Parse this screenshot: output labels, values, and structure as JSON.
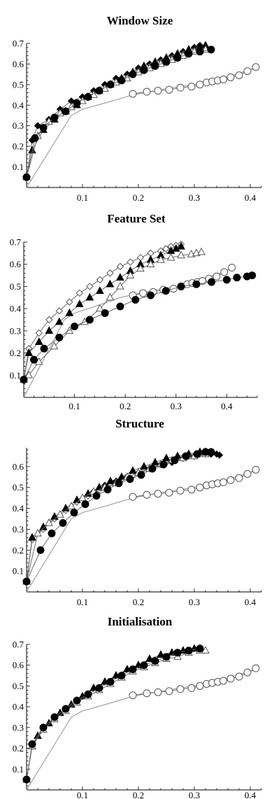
{
  "chart_data": [
    {
      "type": "line",
      "title": "Window Size",
      "xlim": [
        0,
        0.42
      ],
      "ylim": [
        0,
        0.7
      ],
      "xticks": [
        0.1,
        0.2,
        0.3,
        0.4
      ],
      "yticks": [
        0.1,
        0.2,
        0.3,
        0.4,
        0.5,
        0.6,
        0.7
      ],
      "grid": false,
      "series": [
        {
          "marker": "none",
          "color": "#999999",
          "x": [
            0.0,
            0.08,
            0.1,
            0.14,
            0.19,
            0.25,
            0.3,
            0.35,
            0.41
          ],
          "y": [
            0.0,
            0.35,
            0.38,
            0.41,
            0.45,
            0.48,
            0.5,
            0.53,
            0.58
          ]
        },
        {
          "marker": "circle-open",
          "color": "#555555",
          "x": [
            0.19,
            0.215,
            0.235,
            0.255,
            0.275,
            0.295,
            0.31,
            0.322,
            0.332,
            0.342,
            0.352,
            0.365,
            0.38,
            0.395,
            0.41
          ],
          "y": [
            0.455,
            0.465,
            0.47,
            0.475,
            0.485,
            0.49,
            0.5,
            0.51,
            0.515,
            0.52,
            0.525,
            0.535,
            0.545,
            0.565,
            0.585
          ]
        },
        {
          "marker": "diamond-filled",
          "color": "#555555",
          "x": [
            0.0,
            0.01,
            0.02,
            0.04,
            0.06,
            0.08,
            0.1,
            0.12,
            0.14,
            0.16,
            0.18,
            0.2,
            0.22,
            0.24,
            0.26,
            0.28,
            0.3,
            0.31
          ],
          "y": [
            0.05,
            0.23,
            0.3,
            0.33,
            0.38,
            0.42,
            0.44,
            0.47,
            0.5,
            0.53,
            0.55,
            0.58,
            0.6,
            0.62,
            0.64,
            0.66,
            0.68,
            0.69
          ]
        },
        {
          "marker": "triangle-filled",
          "color": "#555555",
          "x": [
            0.0,
            0.01,
            0.03,
            0.05,
            0.07,
            0.09,
            0.11,
            0.13,
            0.15,
            0.17,
            0.19,
            0.21,
            0.23,
            0.25,
            0.27,
            0.29,
            0.31,
            0.32
          ],
          "y": [
            0.05,
            0.18,
            0.28,
            0.33,
            0.37,
            0.4,
            0.44,
            0.47,
            0.5,
            0.53,
            0.56,
            0.59,
            0.61,
            0.63,
            0.65,
            0.67,
            0.68,
            0.69
          ]
        },
        {
          "marker": "triangle-open",
          "color": "#555555",
          "x": [
            0.0,
            0.02,
            0.04,
            0.06,
            0.08,
            0.1,
            0.12,
            0.14,
            0.16,
            0.18,
            0.2,
            0.22,
            0.24,
            0.26,
            0.28,
            0.3,
            0.32
          ],
          "y": [
            0.05,
            0.25,
            0.32,
            0.36,
            0.39,
            0.42,
            0.45,
            0.48,
            0.51,
            0.53,
            0.56,
            0.58,
            0.6,
            0.62,
            0.64,
            0.66,
            0.67
          ]
        },
        {
          "marker": "circle-filled",
          "color": "#555555",
          "x": [
            0.0,
            0.015,
            0.03,
            0.05,
            0.07,
            0.09,
            0.11,
            0.13,
            0.15,
            0.17,
            0.19,
            0.21,
            0.23,
            0.25,
            0.27,
            0.29,
            0.31,
            0.33
          ],
          "y": [
            0.05,
            0.24,
            0.29,
            0.34,
            0.37,
            0.41,
            0.44,
            0.47,
            0.5,
            0.52,
            0.55,
            0.57,
            0.59,
            0.61,
            0.63,
            0.65,
            0.66,
            0.67
          ]
        }
      ]
    },
    {
      "type": "line",
      "title": "Feature Set",
      "xlim": [
        0,
        0.46
      ],
      "ylim": [
        0,
        0.7
      ],
      "xticks": [
        0.1,
        0.2,
        0.3,
        0.4
      ],
      "yticks": [
        0.1,
        0.2,
        0.3,
        0.4,
        0.5,
        0.6,
        0.7
      ],
      "grid": false,
      "series": [
        {
          "marker": "none",
          "color": "#999999",
          "x": [
            0.0,
            0.08,
            0.1,
            0.14,
            0.19,
            0.25,
            0.3,
            0.35,
            0.41
          ],
          "y": [
            0.0,
            0.35,
            0.38,
            0.41,
            0.45,
            0.48,
            0.5,
            0.53,
            0.58
          ]
        },
        {
          "marker": "circle-open",
          "color": "#555555",
          "x": [
            0.215,
            0.235,
            0.255,
            0.275,
            0.295,
            0.31,
            0.322,
            0.332,
            0.342,
            0.352,
            0.365,
            0.38,
            0.395,
            0.41
          ],
          "y": [
            0.46,
            0.47,
            0.475,
            0.485,
            0.49,
            0.5,
            0.51,
            0.515,
            0.52,
            0.525,
            0.535,
            0.545,
            0.565,
            0.585
          ]
        },
        {
          "marker": "diamond-open",
          "color": "#555555",
          "x": [
            0.0,
            0.01,
            0.03,
            0.05,
            0.07,
            0.09,
            0.11,
            0.13,
            0.15,
            0.17,
            0.19,
            0.21,
            0.23,
            0.25,
            0.27,
            0.28,
            0.29,
            0.3,
            0.31
          ],
          "y": [
            0.08,
            0.22,
            0.29,
            0.35,
            0.39,
            0.43,
            0.47,
            0.5,
            0.53,
            0.56,
            0.59,
            0.61,
            0.63,
            0.65,
            0.66,
            0.67,
            0.68,
            0.685,
            0.69
          ]
        },
        {
          "marker": "triangle-filled",
          "color": "#555555",
          "x": [
            0.0,
            0.01,
            0.03,
            0.05,
            0.07,
            0.09,
            0.11,
            0.13,
            0.15,
            0.17,
            0.19,
            0.21,
            0.23,
            0.25,
            0.27,
            0.29,
            0.3,
            0.31
          ],
          "y": [
            0.08,
            0.2,
            0.25,
            0.3,
            0.34,
            0.38,
            0.42,
            0.45,
            0.48,
            0.51,
            0.54,
            0.57,
            0.6,
            0.62,
            0.64,
            0.66,
            0.67,
            0.68
          ]
        },
        {
          "marker": "triangle-open",
          "color": "#555555",
          "x": [
            0.0,
            0.01,
            0.03,
            0.06,
            0.09,
            0.12,
            0.15,
            0.17,
            0.19,
            0.21,
            0.23,
            0.25,
            0.27,
            0.29,
            0.31,
            0.33,
            0.34,
            0.35
          ],
          "y": [
            0.08,
            0.1,
            0.16,
            0.23,
            0.3,
            0.34,
            0.4,
            0.45,
            0.5,
            0.55,
            0.58,
            0.6,
            0.62,
            0.63,
            0.64,
            0.645,
            0.65,
            0.655
          ]
        },
        {
          "marker": "circle-filled",
          "color": "#555555",
          "x": [
            0.0,
            0.02,
            0.04,
            0.07,
            0.1,
            0.13,
            0.16,
            0.19,
            0.22,
            0.25,
            0.28,
            0.31,
            0.34,
            0.37,
            0.4,
            0.42,
            0.44,
            0.45
          ],
          "y": [
            0.08,
            0.17,
            0.22,
            0.27,
            0.32,
            0.35,
            0.38,
            0.41,
            0.44,
            0.46,
            0.48,
            0.5,
            0.51,
            0.52,
            0.53,
            0.54,
            0.545,
            0.55
          ]
        }
      ]
    },
    {
      "type": "line",
      "title": "Structure",
      "xlim": [
        0,
        0.42
      ],
      "ylim": [
        0,
        0.69
      ],
      "xticks": [
        0.1,
        0.2,
        0.3,
        0.4
      ],
      "yticks": [
        0.1,
        0.2,
        0.3,
        0.4,
        0.5,
        0.6
      ],
      "grid": false,
      "series": [
        {
          "marker": "none",
          "color": "#999999",
          "x": [
            0.0,
            0.08,
            0.1,
            0.14,
            0.19,
            0.25,
            0.3,
            0.35,
            0.41
          ],
          "y": [
            0.0,
            0.35,
            0.38,
            0.41,
            0.45,
            0.48,
            0.5,
            0.53,
            0.58
          ]
        },
        {
          "marker": "circle-open",
          "color": "#555555",
          "x": [
            0.19,
            0.215,
            0.235,
            0.255,
            0.275,
            0.295,
            0.31,
            0.322,
            0.332,
            0.342,
            0.352,
            0.365,
            0.38,
            0.395,
            0.41
          ],
          "y": [
            0.455,
            0.465,
            0.47,
            0.475,
            0.485,
            0.49,
            0.5,
            0.51,
            0.515,
            0.52,
            0.525,
            0.535,
            0.545,
            0.565,
            0.585
          ]
        },
        {
          "marker": "diamond-open",
          "color": "#555555",
          "x": [
            0.0,
            0.01,
            0.03,
            0.05,
            0.07,
            0.09,
            0.11,
            0.13,
            0.15,
            0.17,
            0.19,
            0.21,
            0.23,
            0.25,
            0.27,
            0.29,
            0.31,
            0.33
          ],
          "y": [
            0.05,
            0.25,
            0.3,
            0.35,
            0.39,
            0.43,
            0.46,
            0.49,
            0.52,
            0.54,
            0.56,
            0.59,
            0.61,
            0.62,
            0.64,
            0.65,
            0.66,
            0.66
          ]
        },
        {
          "marker": "diamond-filled",
          "color": "#555555",
          "x": [
            0.12,
            0.14,
            0.16,
            0.18,
            0.2,
            0.22,
            0.24,
            0.26,
            0.28,
            0.3,
            0.32,
            0.33,
            0.34,
            0.345
          ],
          "y": [
            0.48,
            0.51,
            0.53,
            0.55,
            0.57,
            0.59,
            0.61,
            0.62,
            0.64,
            0.65,
            0.66,
            0.66,
            0.66,
            0.655
          ]
        },
        {
          "marker": "triangle-filled",
          "color": "#555555",
          "x": [
            0.0,
            0.01,
            0.03,
            0.05,
            0.07,
            0.09,
            0.11,
            0.13,
            0.15,
            0.17,
            0.19,
            0.21,
            0.23,
            0.25,
            0.27,
            0.29,
            0.31,
            0.32
          ],
          "y": [
            0.05,
            0.26,
            0.31,
            0.36,
            0.4,
            0.44,
            0.47,
            0.5,
            0.53,
            0.55,
            0.58,
            0.6,
            0.62,
            0.64,
            0.65,
            0.66,
            0.67,
            0.67
          ]
        },
        {
          "marker": "triangle-open",
          "color": "#555555",
          "x": [
            0.0,
            0.02,
            0.04,
            0.06,
            0.08,
            0.1,
            0.12,
            0.14,
            0.16,
            0.18,
            0.2,
            0.22,
            0.24,
            0.26,
            0.28,
            0.3,
            0.32
          ],
          "y": [
            0.05,
            0.28,
            0.33,
            0.37,
            0.41,
            0.45,
            0.48,
            0.5,
            0.52,
            0.55,
            0.57,
            0.59,
            0.61,
            0.63,
            0.64,
            0.65,
            0.66
          ]
        },
        {
          "marker": "circle-filled",
          "color": "#555555",
          "x": [
            0.0,
            0.025,
            0.045,
            0.065,
            0.085,
            0.105,
            0.125,
            0.145,
            0.165,
            0.185,
            0.205,
            0.225,
            0.245,
            0.265,
            0.285,
            0.305,
            0.32,
            0.33
          ],
          "y": [
            0.05,
            0.2,
            0.28,
            0.33,
            0.38,
            0.42,
            0.46,
            0.49,
            0.52,
            0.54,
            0.56,
            0.59,
            0.61,
            0.63,
            0.65,
            0.66,
            0.67,
            0.67
          ]
        }
      ]
    },
    {
      "type": "line",
      "title": "Initialisation",
      "xlim": [
        0,
        0.42
      ],
      "ylim": [
        0,
        0.7
      ],
      "xticks": [
        0.1,
        0.2,
        0.3,
        0.4
      ],
      "yticks": [
        0.1,
        0.2,
        0.3,
        0.4,
        0.5,
        0.6,
        0.7
      ],
      "grid": false,
      "series": [
        {
          "marker": "none",
          "color": "#999999",
          "x": [
            0.0,
            0.08,
            0.1,
            0.14,
            0.19,
            0.25,
            0.3,
            0.35,
            0.41
          ],
          "y": [
            0.0,
            0.35,
            0.38,
            0.41,
            0.45,
            0.48,
            0.5,
            0.53,
            0.58
          ]
        },
        {
          "marker": "circle-open",
          "color": "#555555",
          "x": [
            0.19,
            0.215,
            0.235,
            0.255,
            0.275,
            0.295,
            0.31,
            0.322,
            0.332,
            0.342,
            0.352,
            0.365,
            0.38,
            0.395,
            0.41
          ],
          "y": [
            0.455,
            0.465,
            0.47,
            0.475,
            0.485,
            0.49,
            0.5,
            0.51,
            0.515,
            0.52,
            0.525,
            0.535,
            0.545,
            0.565,
            0.585
          ]
        },
        {
          "marker": "triangle-filled",
          "color": "#555555",
          "x": [
            0.0,
            0.01,
            0.02,
            0.04,
            0.06,
            0.08,
            0.1,
            0.12,
            0.14,
            0.16,
            0.18,
            0.2,
            0.22,
            0.24,
            0.26,
            0.28,
            0.3,
            0.31
          ],
          "y": [
            0.05,
            0.21,
            0.26,
            0.32,
            0.37,
            0.41,
            0.45,
            0.49,
            0.52,
            0.55,
            0.58,
            0.6,
            0.63,
            0.65,
            0.66,
            0.67,
            0.68,
            0.68
          ]
        },
        {
          "marker": "triangle-open",
          "color": "#555555",
          "x": [
            0.0,
            0.01,
            0.03,
            0.05,
            0.07,
            0.09,
            0.11,
            0.13,
            0.15,
            0.17,
            0.19,
            0.21,
            0.23,
            0.25,
            0.27,
            0.29,
            0.31,
            0.32
          ],
          "y": [
            0.05,
            0.21,
            0.29,
            0.34,
            0.38,
            0.42,
            0.45,
            0.48,
            0.51,
            0.54,
            0.57,
            0.59,
            0.61,
            0.63,
            0.64,
            0.66,
            0.67,
            0.67
          ]
        },
        {
          "marker": "circle-filled",
          "color": "#555555",
          "x": [
            0.0,
            0.01,
            0.03,
            0.05,
            0.07,
            0.09,
            0.11,
            0.13,
            0.15,
            0.17,
            0.19,
            0.21,
            0.23,
            0.25,
            0.27,
            0.29,
            0.31
          ],
          "y": [
            0.05,
            0.22,
            0.3,
            0.35,
            0.39,
            0.43,
            0.46,
            0.49,
            0.52,
            0.55,
            0.58,
            0.6,
            0.62,
            0.64,
            0.66,
            0.67,
            0.68
          ]
        }
      ]
    }
  ]
}
